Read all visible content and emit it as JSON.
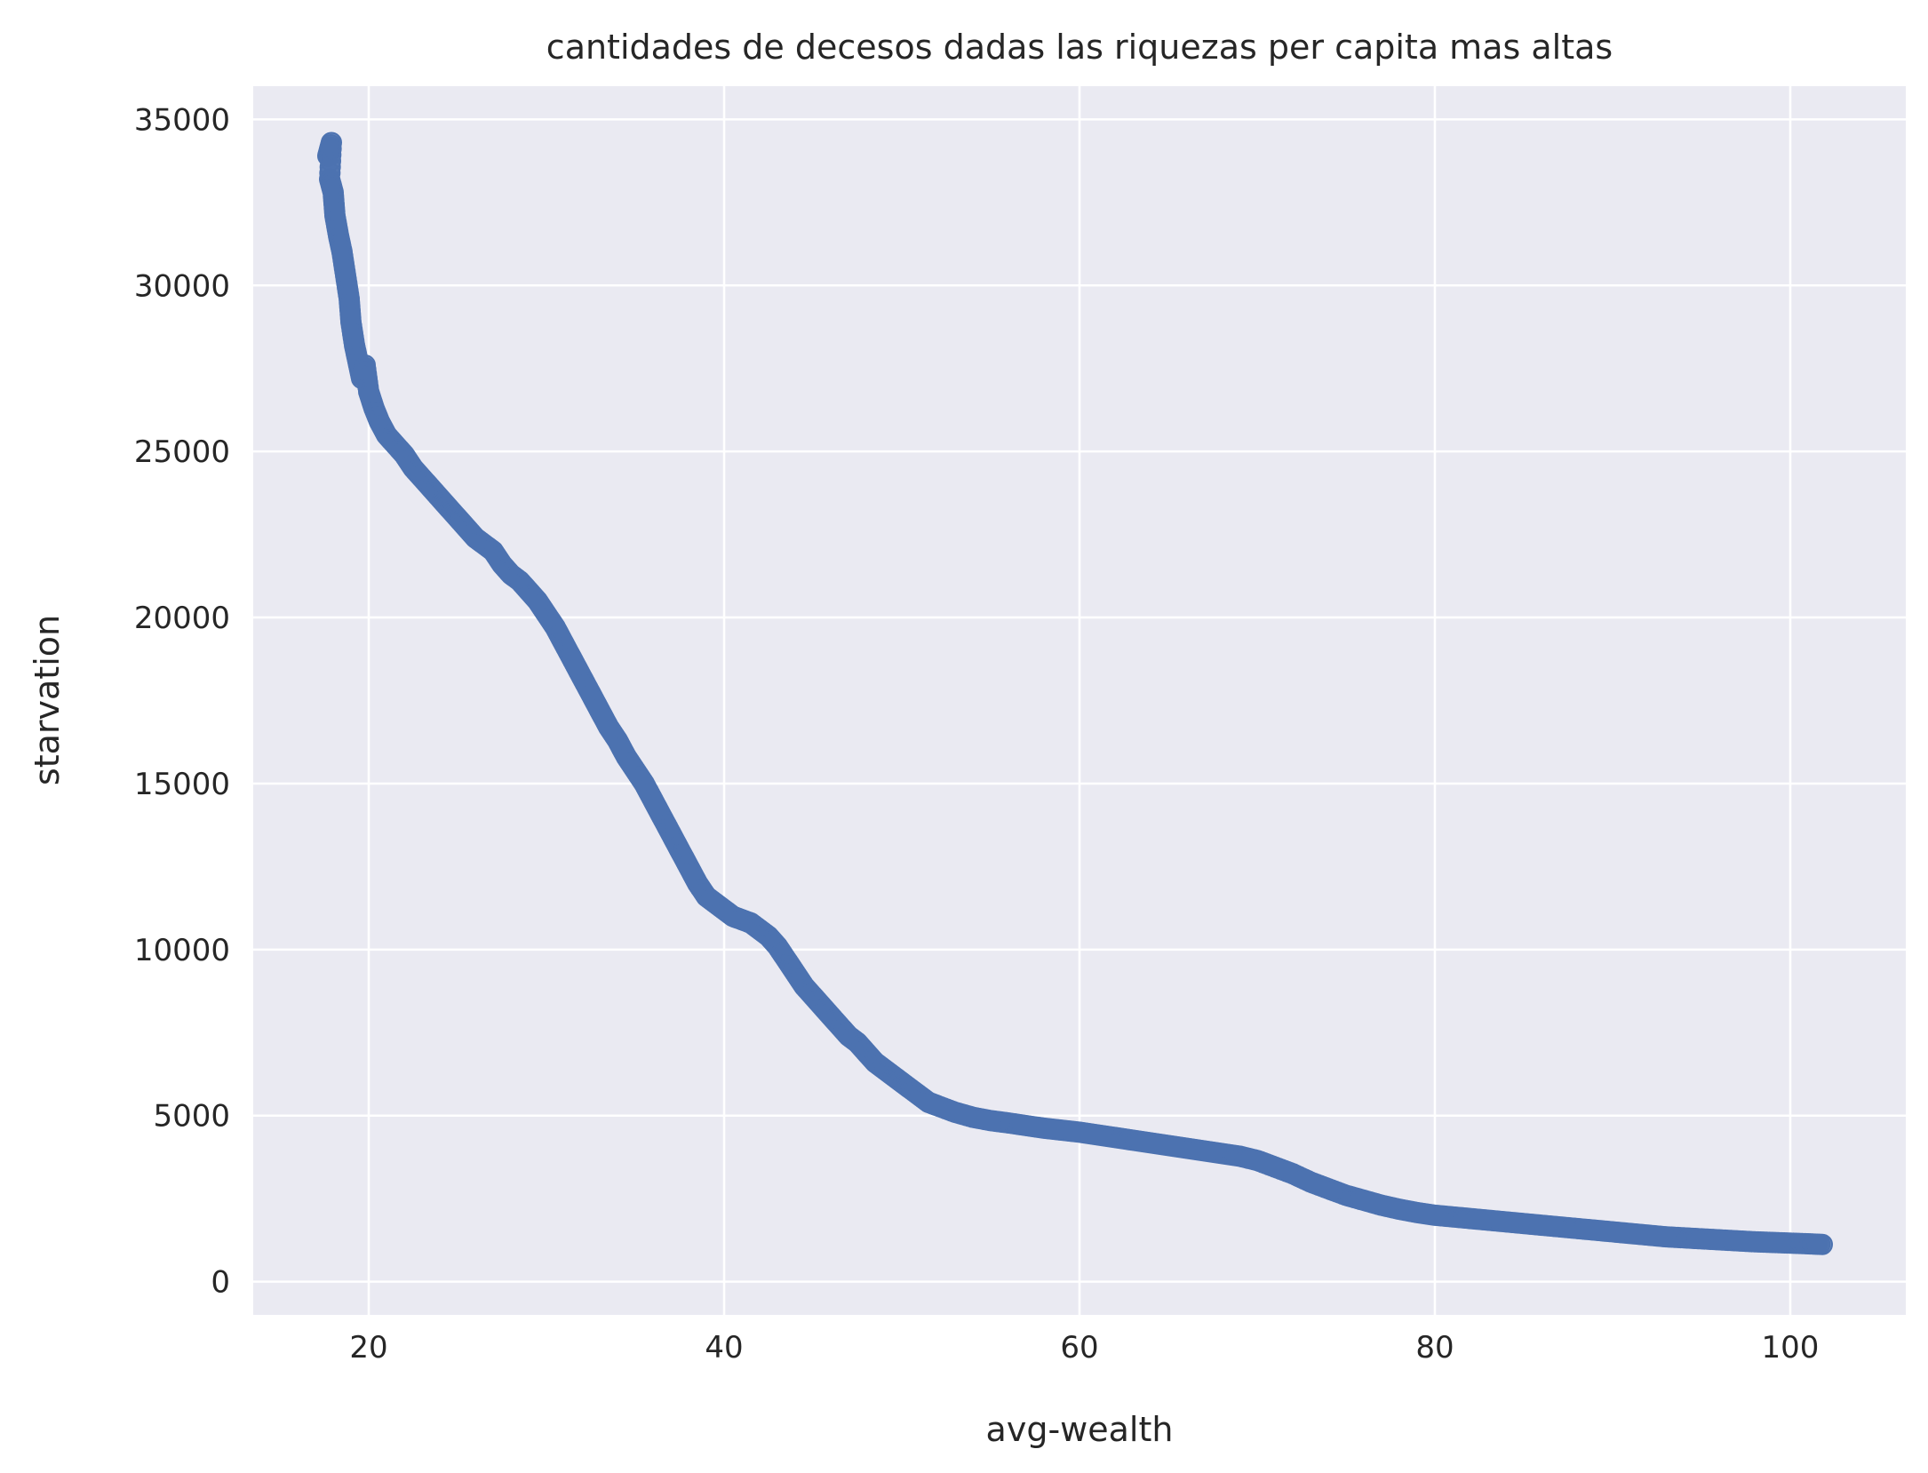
{
  "chart_data": {
    "type": "scatter",
    "title": "cantidades de decesos dadas las riquezas per capita mas altas",
    "xlabel": "avg-wealth",
    "ylabel": "starvation",
    "xlim": [
      13.5,
      106.5
    ],
    "ylim": [
      -1000,
      36000
    ],
    "xticks": [
      20,
      40,
      60,
      80,
      100
    ],
    "xtick_labels": [
      "20",
      "40",
      "60",
      "80",
      "100"
    ],
    "yticks": [
      0,
      5000,
      10000,
      15000,
      20000,
      25000,
      30000,
      35000
    ],
    "ytick_labels": [
      "0",
      "5000",
      "10000",
      "15000",
      "20000",
      "25000",
      "30000",
      "35000"
    ],
    "grid": true,
    "background_color": "#eaeaf2",
    "marker_color": "#4c72b0",
    "series": [
      {
        "color": "#4c72b0",
        "points": [
          [
            17.7,
            33900
          ],
          [
            17.9,
            34300
          ],
          [
            17.8,
            33200
          ],
          [
            18.0,
            32800
          ],
          [
            18.1,
            32100
          ],
          [
            18.3,
            31500
          ],
          [
            18.5,
            31000
          ],
          [
            18.7,
            30300
          ],
          [
            18.9,
            29600
          ],
          [
            19.0,
            28900
          ],
          [
            19.2,
            28200
          ],
          [
            19.4,
            27700
          ],
          [
            19.6,
            27200
          ],
          [
            19.8,
            27600
          ],
          [
            20.0,
            26800
          ],
          [
            20.3,
            26300
          ],
          [
            20.6,
            25900
          ],
          [
            21.0,
            25500
          ],
          [
            21.5,
            25200
          ],
          [
            22.0,
            24900
          ],
          [
            22.5,
            24500
          ],
          [
            23.0,
            24200
          ],
          [
            23.5,
            23900
          ],
          [
            24.0,
            23600
          ],
          [
            24.5,
            23300
          ],
          [
            25.0,
            23000
          ],
          [
            25.5,
            22700
          ],
          [
            26.0,
            22400
          ],
          [
            26.5,
            22200
          ],
          [
            27.0,
            22000
          ],
          [
            27.5,
            21600
          ],
          [
            28.0,
            21300
          ],
          [
            28.5,
            21100
          ],
          [
            29.0,
            20800
          ],
          [
            29.5,
            20500
          ],
          [
            30.0,
            20100
          ],
          [
            30.5,
            19700
          ],
          [
            31.0,
            19200
          ],
          [
            31.5,
            18700
          ],
          [
            32.0,
            18200
          ],
          [
            32.5,
            17700
          ],
          [
            33.0,
            17200
          ],
          [
            33.5,
            16700
          ],
          [
            34.0,
            16300
          ],
          [
            34.5,
            15800
          ],
          [
            35.0,
            15400
          ],
          [
            35.5,
            15000
          ],
          [
            36.0,
            14500
          ],
          [
            36.5,
            14000
          ],
          [
            37.0,
            13500
          ],
          [
            37.5,
            13000
          ],
          [
            38.0,
            12500
          ],
          [
            38.5,
            12000
          ],
          [
            39.0,
            11600
          ],
          [
            39.5,
            11400
          ],
          [
            40.0,
            11200
          ],
          [
            40.5,
            11000
          ],
          [
            41.0,
            10900
          ],
          [
            41.5,
            10800
          ],
          [
            42.0,
            10600
          ],
          [
            42.5,
            10400
          ],
          [
            43.0,
            10100
          ],
          [
            43.5,
            9700
          ],
          [
            44.0,
            9300
          ],
          [
            44.5,
            8900
          ],
          [
            45.0,
            8600
          ],
          [
            45.5,
            8300
          ],
          [
            46.0,
            8000
          ],
          [
            46.5,
            7700
          ],
          [
            47.0,
            7400
          ],
          [
            47.5,
            7200
          ],
          [
            48.0,
            6900
          ],
          [
            48.5,
            6600
          ],
          [
            49.0,
            6400
          ],
          [
            49.5,
            6200
          ],
          [
            50.0,
            6000
          ],
          [
            50.5,
            5800
          ],
          [
            51.0,
            5600
          ],
          [
            51.5,
            5400
          ],
          [
            52.0,
            5300
          ],
          [
            53.0,
            5100
          ],
          [
            54.0,
            4950
          ],
          [
            55.0,
            4850
          ],
          [
            56.0,
            4780
          ],
          [
            57.0,
            4700
          ],
          [
            58.0,
            4620
          ],
          [
            59.0,
            4560
          ],
          [
            60.0,
            4500
          ],
          [
            61.0,
            4420
          ],
          [
            62.0,
            4340
          ],
          [
            63.0,
            4260
          ],
          [
            64.0,
            4180
          ],
          [
            65.0,
            4100
          ],
          [
            66.0,
            4020
          ],
          [
            67.0,
            3940
          ],
          [
            68.0,
            3860
          ],
          [
            69.0,
            3780
          ],
          [
            70.0,
            3650
          ],
          [
            71.0,
            3450
          ],
          [
            72.0,
            3250
          ],
          [
            73.0,
            3000
          ],
          [
            74.0,
            2800
          ],
          [
            75.0,
            2600
          ],
          [
            76.0,
            2450
          ],
          [
            77.0,
            2300
          ],
          [
            78.0,
            2180
          ],
          [
            79.0,
            2080
          ],
          [
            80.0,
            2000
          ],
          [
            81.0,
            1950
          ],
          [
            82.0,
            1900
          ],
          [
            83.0,
            1850
          ],
          [
            84.0,
            1800
          ],
          [
            85.0,
            1750
          ],
          [
            86.0,
            1700
          ],
          [
            87.0,
            1650
          ],
          [
            88.0,
            1600
          ],
          [
            89.0,
            1550
          ],
          [
            90.0,
            1500
          ],
          [
            91.0,
            1450
          ],
          [
            92.0,
            1400
          ],
          [
            93.0,
            1350
          ],
          [
            94.0,
            1320
          ],
          [
            95.0,
            1290
          ],
          [
            96.0,
            1260
          ],
          [
            97.0,
            1230
          ],
          [
            98.0,
            1200
          ],
          [
            99.0,
            1180
          ],
          [
            100.0,
            1160
          ],
          [
            101.0,
            1140
          ],
          [
            101.8,
            1120
          ]
        ]
      }
    ]
  }
}
